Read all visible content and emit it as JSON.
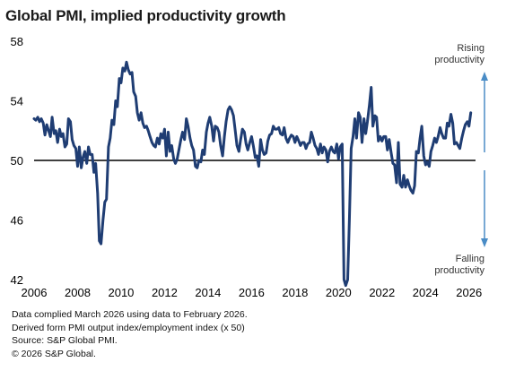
{
  "title": "Global PMI, implied productivity growth",
  "annotations": {
    "rising": [
      "Rising",
      "productivity"
    ],
    "falling": [
      "Falling",
      "productivity"
    ]
  },
  "footer": {
    "line1": "Data complied March 2026 using data to February 2026.",
    "line2": "Derived form PMI output index/employment index (x 50)",
    "line3": "Source: S&P Global PMI.",
    "line4": "© 2026 S&P Global."
  },
  "colors": {
    "series": "#1f3d73",
    "arrow": "#4a8cc6",
    "reference": "#000000"
  },
  "chart_data": {
    "type": "line",
    "title": "Global PMI, implied productivity growth",
    "xlabel": "",
    "ylabel": "",
    "xlim": [
      2006,
      2026.3
    ],
    "ylim": [
      42,
      58
    ],
    "xticks": [
      "2006",
      "2008",
      "2010",
      "2012",
      "2014",
      "2016",
      "2018",
      "2020",
      "2022",
      "2024",
      "2026"
    ],
    "yticks": [
      "42",
      "46",
      "50",
      "54",
      "58"
    ],
    "reference_line": 50,
    "grid": false,
    "series": [
      {
        "name": "",
        "x": [
          2006.0,
          2006.08,
          2006.17,
          2006.25,
          2006.33,
          2006.42,
          2006.5,
          2006.58,
          2006.67,
          2006.75,
          2006.83,
          2006.92,
          2007.0,
          2007.08,
          2007.17,
          2007.25,
          2007.33,
          2007.42,
          2007.5,
          2007.58,
          2007.67,
          2007.75,
          2007.83,
          2007.92,
          2008.0,
          2008.08,
          2008.17,
          2008.25,
          2008.33,
          2008.42,
          2008.5,
          2008.58,
          2008.67,
          2008.75,
          2008.83,
          2008.92,
          2009.0,
          2009.08,
          2009.17,
          2009.25,
          2009.33,
          2009.42,
          2009.5,
          2009.58,
          2009.67,
          2009.75,
          2009.83,
          2009.92,
          2010.0,
          2010.08,
          2010.17,
          2010.25,
          2010.33,
          2010.42,
          2010.5,
          2010.58,
          2010.67,
          2010.75,
          2010.83,
          2010.92,
          2011.0,
          2011.08,
          2011.17,
          2011.25,
          2011.33,
          2011.42,
          2011.5,
          2011.58,
          2011.67,
          2011.75,
          2011.83,
          2011.92,
          2012.0,
          2012.08,
          2012.17,
          2012.25,
          2012.33,
          2012.42,
          2012.5,
          2012.58,
          2012.67,
          2012.75,
          2012.83,
          2012.92,
          2013.0,
          2013.08,
          2013.17,
          2013.25,
          2013.33,
          2013.42,
          2013.5,
          2013.58,
          2013.67,
          2013.75,
          2013.83,
          2013.92,
          2014.0,
          2014.08,
          2014.17,
          2014.25,
          2014.33,
          2014.42,
          2014.5,
          2014.58,
          2014.67,
          2014.75,
          2014.83,
          2014.92,
          2015.0,
          2015.08,
          2015.17,
          2015.25,
          2015.33,
          2015.42,
          2015.5,
          2015.58,
          2015.67,
          2015.75,
          2015.83,
          2015.92,
          2016.0,
          2016.08,
          2016.17,
          2016.25,
          2016.33,
          2016.42,
          2016.5,
          2016.58,
          2016.67,
          2016.75,
          2016.83,
          2016.92,
          2017.0,
          2017.08,
          2017.17,
          2017.25,
          2017.33,
          2017.42,
          2017.5,
          2017.58,
          2017.67,
          2017.75,
          2017.83,
          2017.92,
          2018.0,
          2018.08,
          2018.17,
          2018.25,
          2018.33,
          2018.42,
          2018.5,
          2018.58,
          2018.67,
          2018.75,
          2018.83,
          2018.92,
          2019.0,
          2019.08,
          2019.17,
          2019.25,
          2019.33,
          2019.42,
          2019.5,
          2019.58,
          2019.67,
          2019.75,
          2019.83,
          2019.92,
          2020.0,
          2020.08,
          2020.17,
          2020.25,
          2020.33,
          2020.42,
          2020.5,
          2020.58,
          2020.67,
          2020.75,
          2020.83,
          2020.92,
          2021.0,
          2021.08,
          2021.17,
          2021.25,
          2021.33,
          2021.42,
          2021.5,
          2021.58,
          2021.67,
          2021.75,
          2021.83,
          2021.92,
          2022.0,
          2022.08,
          2022.17,
          2022.25,
          2022.33,
          2022.42,
          2022.5,
          2022.58,
          2022.67,
          2022.75,
          2022.83,
          2022.92,
          2023.0,
          2023.08,
          2023.17,
          2023.25,
          2023.33,
          2023.42,
          2023.5,
          2023.58,
          2023.67,
          2023.75,
          2023.83,
          2023.92,
          2024.0,
          2024.08,
          2024.17,
          2024.25,
          2024.33,
          2024.42,
          2024.5,
          2024.58,
          2024.67,
          2024.75,
          2024.83,
          2024.92,
          2025.0,
          2025.08,
          2025.17,
          2025.25,
          2025.33,
          2025.42,
          2025.5,
          2025.58,
          2025.67,
          2025.75,
          2025.83,
          2025.92,
          2026.0,
          2026.08
        ],
        "values": [
          52.8,
          52.7,
          52.9,
          52.6,
          52.8,
          52.5,
          51.7,
          52.4,
          52.0,
          51.6,
          52.9,
          51.8,
          52.0,
          51.2,
          52.1,
          51.6,
          51.8,
          50.9,
          51.1,
          52.8,
          52.6,
          51.4,
          51.0,
          50.8,
          49.6,
          50.9,
          49.5,
          50.2,
          50.6,
          49.8,
          50.9,
          50.4,
          50.4,
          49.2,
          49.8,
          47.8,
          44.6,
          44.4,
          46.0,
          47.2,
          47.4,
          50.9,
          51.5,
          52.7,
          52.4,
          54.0,
          53.6,
          55.5,
          55.2,
          56.2,
          56.0,
          56.6,
          56.1,
          55.8,
          55.9,
          54.6,
          54.3,
          53.2,
          52.7,
          53.2,
          52.5,
          52.2,
          52.3,
          52.0,
          51.6,
          51.2,
          51.0,
          50.9,
          51.5,
          51.1,
          51.8,
          51.5,
          52.1,
          50.3,
          51.9,
          50.6,
          51.0,
          50.1,
          49.8,
          50.1,
          50.8,
          51.4,
          51.9,
          51.4,
          52.8,
          52.3,
          51.5,
          51.0,
          50.7,
          49.6,
          49.5,
          50.0,
          49.9,
          50.7,
          50.4,
          51.9,
          52.5,
          52.9,
          52.3,
          51.3,
          52.3,
          52.2,
          51.9,
          51.0,
          50.3,
          51.6,
          52.6,
          53.4,
          53.6,
          53.4,
          53.0,
          52.0,
          51.0,
          50.6,
          51.4,
          52.1,
          51.9,
          51.1,
          50.7,
          51.2,
          51.6,
          51.0,
          50.2,
          50.3,
          49.6,
          51.4,
          50.7,
          50.4,
          50.5,
          51.3,
          51.7,
          51.8,
          52.3,
          52.1,
          52.1,
          52.2,
          51.8,
          51.7,
          52.2,
          51.5,
          51.2,
          51.5,
          51.7,
          51.6,
          51.2,
          51.6,
          51.3,
          51.0,
          51.2,
          51.2,
          50.8,
          51.1,
          51.2,
          51.9,
          51.5,
          51.0,
          50.8,
          50.4,
          51.1,
          50.5,
          50.9,
          50.7,
          49.9,
          50.6,
          50.9,
          50.6,
          50.5,
          51.1,
          50.1,
          50.9,
          51.1,
          42.0,
          41.6,
          42.0,
          46.0,
          50.8,
          51.6,
          52.8,
          51.5,
          53.2,
          52.9,
          51.2,
          52.8,
          51.8,
          52.6,
          53.7,
          54.9,
          52.3,
          53.0,
          52.9,
          51.3,
          51.6,
          51.3,
          51.6,
          51.6,
          50.7,
          51.4,
          50.5,
          49.8,
          49.7,
          48.5,
          51.2,
          48.4,
          48.2,
          49.0,
          48.2,
          48.7,
          48.3,
          48.0,
          47.8,
          48.3,
          50.6,
          50.5,
          51.5,
          52.3,
          50.3,
          49.7,
          49.9,
          49.6,
          50.6,
          51.0,
          51.5,
          51.2,
          51.6,
          52.2,
          51.8,
          51.5,
          51.5,
          52.5,
          52.3,
          53.1,
          52.5,
          51.1,
          51.2,
          51.0,
          50.8,
          51.5,
          52.0,
          52.4,
          52.6,
          52.3,
          53.2
        ]
      }
    ]
  }
}
